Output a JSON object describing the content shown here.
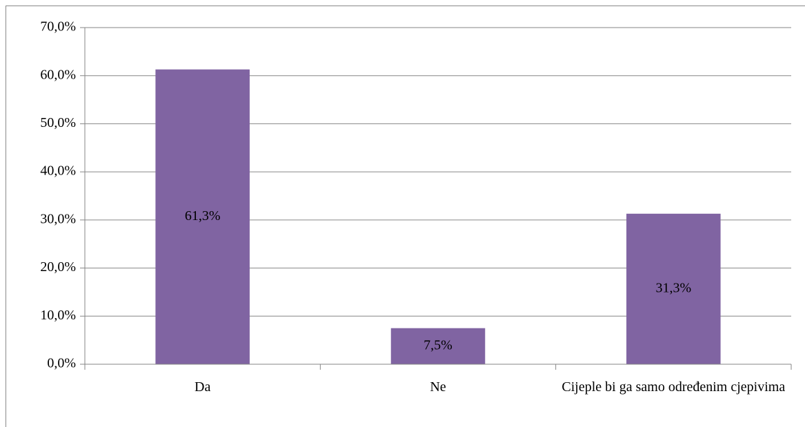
{
  "chart_data": {
    "type": "bar",
    "categories": [
      "Da",
      "Ne",
      "Cijeple bi ga samo određenim cjepivima"
    ],
    "values": [
      61.3,
      7.5,
      31.3
    ],
    "value_labels": [
      "61,3%",
      "7,5%",
      "31,3%"
    ],
    "color": "#8064a2",
    "ylim": [
      0,
      70
    ],
    "yticks": [
      {
        "value": 0,
        "label": "0,0%"
      },
      {
        "value": 10,
        "label": "10,0%"
      },
      {
        "value": 20,
        "label": "20,0%"
      },
      {
        "value": 30,
        "label": "30,0%"
      },
      {
        "value": 40,
        "label": "40,0%"
      },
      {
        "value": 50,
        "label": "50,0%"
      },
      {
        "value": 60,
        "label": "60,0%"
      },
      {
        "value": 70,
        "label": "70,0%"
      }
    ],
    "grid": true
  }
}
